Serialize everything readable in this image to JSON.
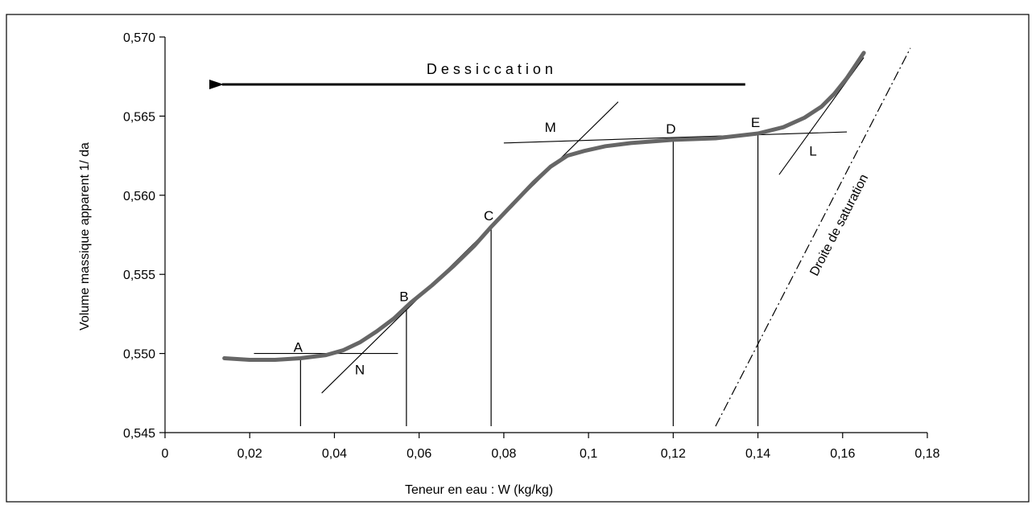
{
  "chart_data": {
    "type": "line",
    "title": "",
    "xlabel": "Teneur en eau : W (kg/kg)",
    "ylabel": "Volume massique apparent 1/ da",
    "xlim": [
      0,
      0.18
    ],
    "ylim": [
      0.545,
      0.57
    ],
    "x_ticks": [
      0,
      0.02,
      0.04,
      0.06,
      0.08,
      0.1,
      0.12,
      0.14,
      0.16,
      0.18
    ],
    "x_tick_labels": [
      "0",
      "0,02",
      "0,04",
      "0,06",
      "0,08",
      "0,1",
      "0,12",
      "0,14",
      "0,16",
      "0,18"
    ],
    "y_ticks": [
      0.545,
      0.55,
      0.555,
      0.56,
      0.565,
      0.57
    ],
    "y_tick_labels": [
      "0,545",
      "0,550",
      "0,555",
      "0,560",
      "0,565",
      "0,570"
    ],
    "grid": false,
    "series": [
      {
        "points": [
          [
            0.014,
            0.5497
          ],
          [
            0.02,
            0.5496
          ],
          [
            0.026,
            0.5496
          ],
          [
            0.032,
            0.5497
          ],
          [
            0.038,
            0.5499
          ],
          [
            0.042,
            0.5502
          ],
          [
            0.046,
            0.5507
          ],
          [
            0.05,
            0.5514
          ],
          [
            0.054,
            0.5522
          ],
          [
            0.058,
            0.5532
          ],
          [
            0.063,
            0.5543
          ],
          [
            0.068,
            0.5555
          ],
          [
            0.073,
            0.5568
          ],
          [
            0.077,
            0.558
          ],
          [
            0.082,
            0.5594
          ],
          [
            0.087,
            0.5608
          ],
          [
            0.091,
            0.5618
          ],
          [
            0.095,
            0.5625
          ],
          [
            0.099,
            0.5628
          ],
          [
            0.104,
            0.5631
          ],
          [
            0.11,
            0.5633
          ],
          [
            0.12,
            0.5635
          ],
          [
            0.13,
            0.5636
          ],
          [
            0.14,
            0.5639
          ],
          [
            0.146,
            0.5643
          ],
          [
            0.151,
            0.5649
          ],
          [
            0.155,
            0.5656
          ],
          [
            0.158,
            0.5664
          ],
          [
            0.161,
            0.5674
          ],
          [
            0.163,
            0.5682
          ],
          [
            0.165,
            0.569
          ]
        ],
        "color": "#666666"
      }
    ],
    "saturation_line": {
      "label": "Droite de saturation",
      "points": [
        [
          0.13,
          0.5454
        ],
        [
          0.176,
          0.5693
        ]
      ]
    },
    "tangent_lines": [
      {
        "points": [
          [
            0.021,
            0.55
          ],
          [
            0.055,
            0.55
          ]
        ]
      },
      {
        "points": [
          [
            0.037,
            0.5475
          ],
          [
            0.107,
            0.5659
          ]
        ]
      },
      {
        "points": [
          [
            0.08,
            0.5633
          ],
          [
            0.161,
            0.564
          ]
        ]
      },
      {
        "points": [
          [
            0.145,
            0.5613
          ],
          [
            0.165,
            0.5687
          ]
        ]
      }
    ],
    "vertical_markers": [
      {
        "label": "A",
        "x": 0.032,
        "y": 0.5497
      },
      {
        "label": "B",
        "x": 0.057,
        "y": 0.5529
      },
      {
        "label": "C",
        "x": 0.077,
        "y": 0.558
      },
      {
        "label": "D",
        "x": 0.12,
        "y": 0.5635
      },
      {
        "label": "E",
        "x": 0.14,
        "y": 0.5639
      }
    ],
    "point_labels": [
      {
        "label": "M",
        "x": 0.091,
        "y": 0.5643
      },
      {
        "label": "N",
        "x": 0.046,
        "y": 0.549
      },
      {
        "label": "L",
        "x": 0.153,
        "y": 0.5628
      }
    ],
    "annotation": {
      "text": "Dessiccation",
      "arrow_from": [
        0.137,
        0.567
      ],
      "arrow_to": [
        0.0135,
        0.567
      ]
    }
  }
}
